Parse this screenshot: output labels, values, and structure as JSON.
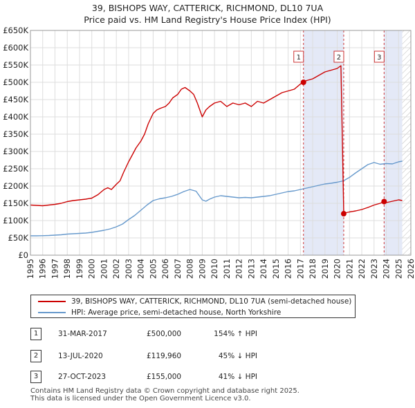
{
  "title_line1": "39, BISHOPS WAY, CATTERICK, RICHMOND, DL10 7UA",
  "title_line2": "Price paid vs. HM Land Registry's House Price Index (HPI)",
  "chart_data": {
    "type": "line",
    "y_ticks": [
      "£0",
      "£50K",
      "£100K",
      "£150K",
      "£200K",
      "£250K",
      "£300K",
      "£350K",
      "£400K",
      "£450K",
      "£500K",
      "£550K",
      "£600K",
      "£650K"
    ],
    "x_ticks": [
      "1995",
      "1996",
      "1997",
      "1998",
      "1999",
      "2000",
      "2001",
      "2002",
      "2003",
      "2004",
      "2005",
      "2006",
      "2007",
      "2008",
      "2009",
      "2010",
      "2011",
      "2012",
      "2013",
      "2014",
      "2015",
      "2016",
      "2017",
      "2018",
      "2019",
      "2020",
      "2021",
      "2022",
      "2023",
      "2024",
      "2025",
      "2026"
    ],
    "xlim": [
      1995,
      2026
    ],
    "ylim": [
      0,
      650000
    ],
    "series": [
      {
        "name": "39, BISHOPS WAY, CATTERICK, RICHMOND, DL10 7UA (semi-detached house)",
        "color": "#cc0000",
        "x": [
          1995,
          1995.5,
          1996,
          1996.5,
          1997,
          1997.5,
          1998,
          1998.5,
          1999,
          1999.5,
          2000,
          2000.5,
          2001,
          2001.3,
          2001.6,
          2002,
          2002.3,
          2002.6,
          2003,
          2003.3,
          2003.6,
          2004,
          2004.3,
          2004.6,
          2005,
          2005.3,
          2005.6,
          2006,
          2006.3,
          2006.6,
          2007,
          2007.3,
          2007.6,
          2008,
          2008.3,
          2008.6,
          2009,
          2009.3,
          2009.6,
          2010,
          2010.5,
          2011,
          2011.5,
          2012,
          2012.5,
          2013,
          2013.5,
          2014,
          2014.5,
          2015,
          2015.5,
          2016,
          2016.5,
          2017,
          2017.25,
          2017.5,
          2018,
          2018.5,
          2019,
          2019.5,
          2020,
          2020.3,
          2020.53,
          2020.6,
          2021,
          2021.5,
          2022,
          2022.5,
          2023,
          2023.5,
          2023.82,
          2024,
          2024.5,
          2025,
          2025.3
        ],
        "y": [
          145000,
          144000,
          143000,
          145000,
          147000,
          150000,
          155000,
          158000,
          160000,
          162000,
          165000,
          175000,
          190000,
          195000,
          190000,
          205000,
          215000,
          240000,
          270000,
          290000,
          310000,
          330000,
          350000,
          380000,
          410000,
          420000,
          425000,
          430000,
          440000,
          455000,
          465000,
          480000,
          485000,
          475000,
          465000,
          440000,
          400000,
          420000,
          430000,
          440000,
          445000,
          430000,
          440000,
          435000,
          440000,
          430000,
          445000,
          440000,
          450000,
          460000,
          470000,
          475000,
          480000,
          495000,
          500000,
          505000,
          510000,
          520000,
          530000,
          535000,
          540000,
          548000,
          119960,
          122000,
          125000,
          128000,
          132000,
          138000,
          145000,
          150000,
          155000,
          152000,
          156000,
          160000,
          158000
        ]
      },
      {
        "name": "HPI: Average price, semi-detached house, North Yorkshire",
        "color": "#6699cc",
        "x": [
          1995,
          1995.5,
          1996,
          1996.5,
          1997,
          1997.5,
          1998,
          1998.5,
          1999,
          1999.5,
          2000,
          2000.5,
          2001,
          2001.5,
          2002,
          2002.5,
          2003,
          2003.5,
          2004,
          2004.5,
          2005,
          2005.5,
          2006,
          2006.5,
          2007,
          2007.5,
          2008,
          2008.5,
          2009,
          2009.3,
          2009.6,
          2010,
          2010.5,
          2011,
          2011.5,
          2012,
          2012.5,
          2013,
          2013.5,
          2014,
          2014.5,
          2015,
          2015.5,
          2016,
          2016.5,
          2017,
          2017.5,
          2018,
          2018.5,
          2019,
          2019.5,
          2020,
          2020.5,
          2021,
          2021.5,
          2022,
          2022.5,
          2023,
          2023.5,
          2024,
          2024.5,
          2025,
          2025.3
        ],
        "y": [
          56000,
          56000,
          56500,
          57000,
          58000,
          59000,
          61000,
          62000,
          63000,
          64000,
          66000,
          69000,
          72000,
          76000,
          82000,
          90000,
          103000,
          115000,
          130000,
          145000,
          158000,
          163000,
          166000,
          170000,
          176000,
          184000,
          190000,
          185000,
          160000,
          156000,
          162000,
          168000,
          172000,
          170000,
          168000,
          166000,
          167000,
          166000,
          168000,
          170000,
          172000,
          176000,
          180000,
          184000,
          186000,
          190000,
          194000,
          198000,
          202000,
          206000,
          208000,
          211000,
          215000,
          225000,
          238000,
          250000,
          262000,
          268000,
          263000,
          265000,
          264000,
          270000,
          272000
        ]
      }
    ],
    "sales": [
      {
        "num": "1",
        "x": 2017.25,
        "y": 500000,
        "date": "31-MAR-2017",
        "price": "£500,000",
        "hpi": "154% ↑ HPI"
      },
      {
        "num": "2",
        "x": 2020.53,
        "y": 119960,
        "date": "13-JUL-2020",
        "price": "£119,960",
        "hpi": "45% ↓ HPI"
      },
      {
        "num": "3",
        "x": 2023.82,
        "y": 155000,
        "date": "27-OCT-2023",
        "price": "£155,000",
        "hpi": "41% ↓ HPI"
      }
    ],
    "shaded_spans": [
      [
        2017.25,
        2020.53
      ],
      [
        2023.82,
        2025.3
      ]
    ],
    "future_hatch_from": 2025.3
  },
  "legend": {
    "red_label": "39, BISHOPS WAY, CATTERICK, RICHMOND, DL10 7UA (semi-detached house)",
    "blue_label": "HPI: Average price, semi-detached house, North Yorkshire"
  },
  "footer_line1": "Contains HM Land Registry data © Crown copyright and database right 2025.",
  "footer_line2": "This data is licensed under the Open Government Licence v3.0."
}
